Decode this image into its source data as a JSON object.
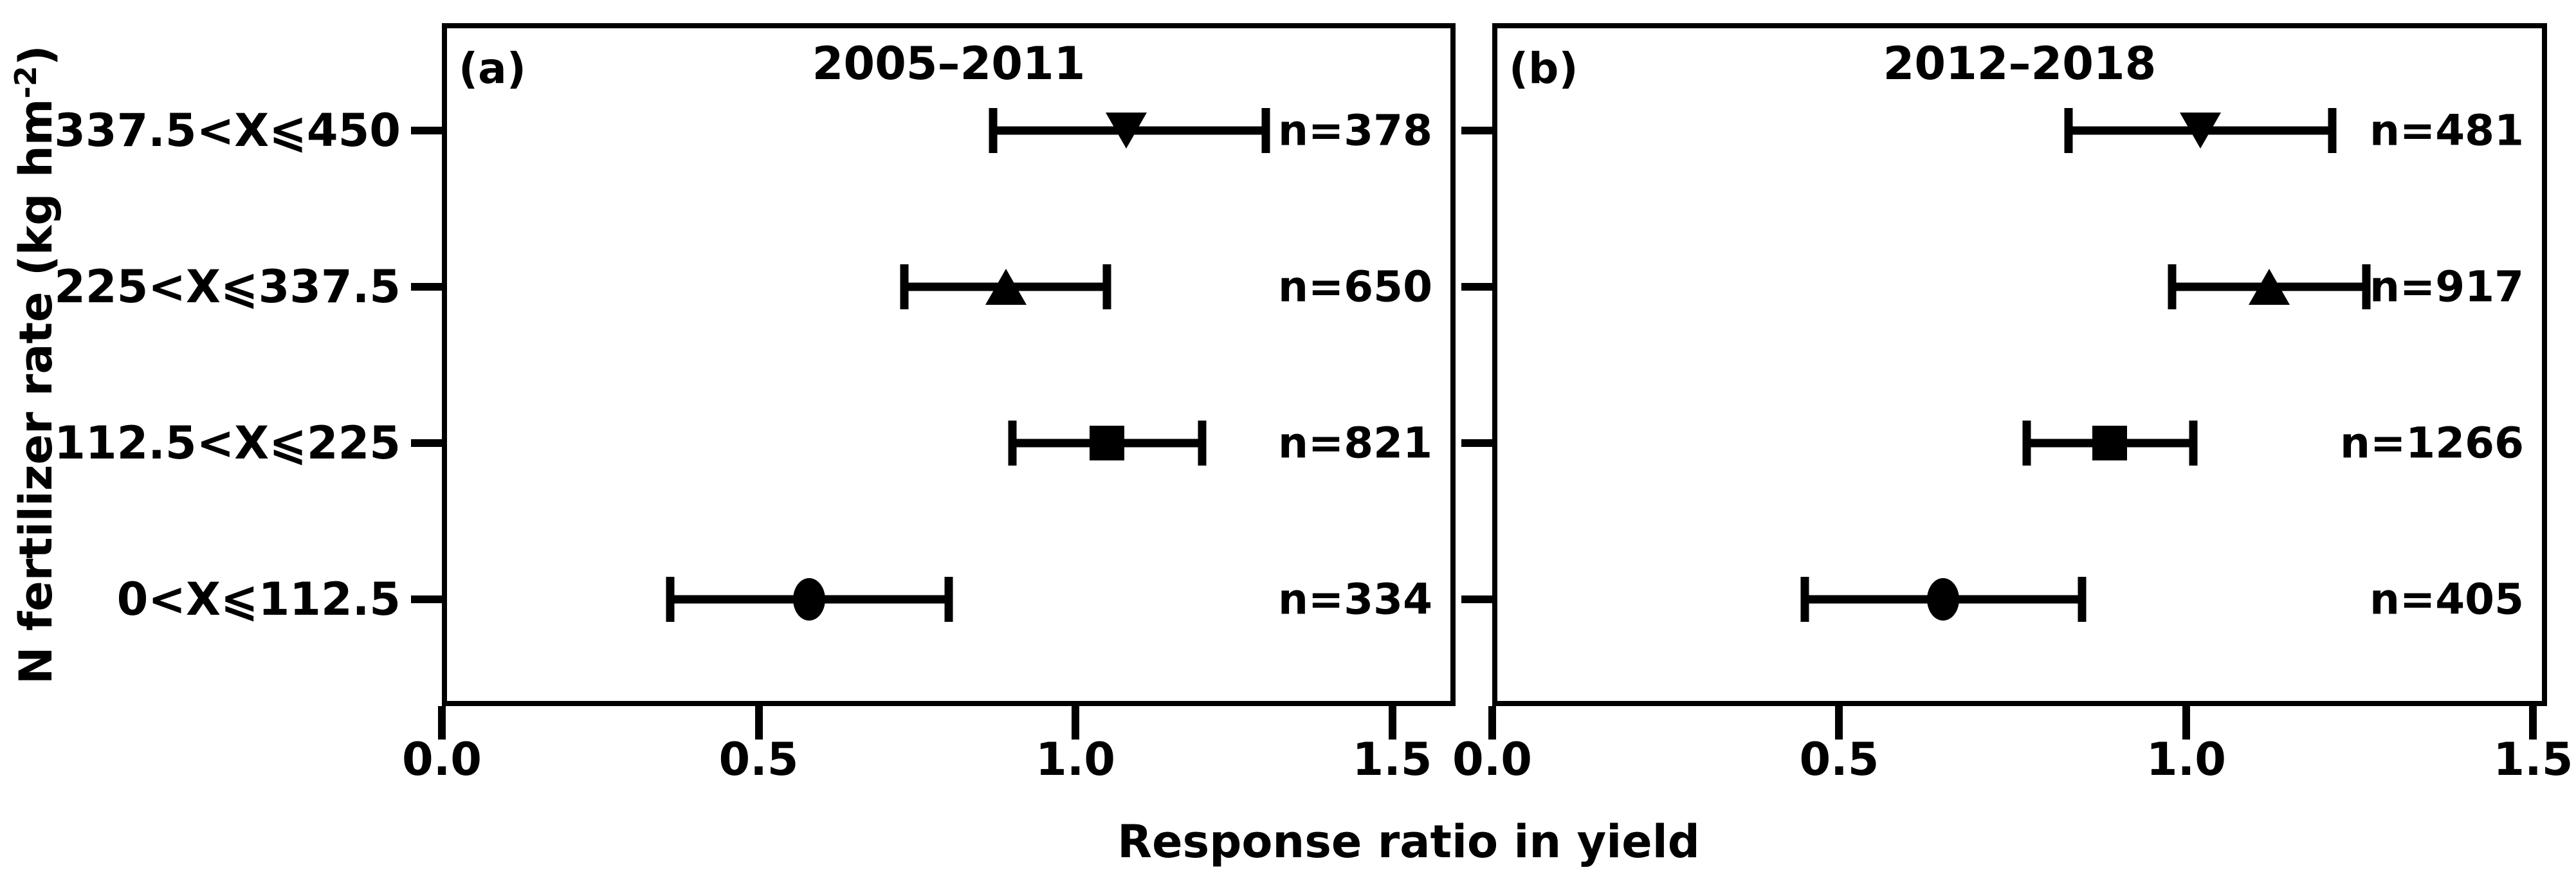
{
  "figure": {
    "xlabel": "Response ratio in yield",
    "ylabel_main": "N fertilizer rate (kg hm",
    "ylabel_sup": "-2",
    "ylabel_end": ")",
    "colors": {
      "ink": "#000000",
      "background": "#ffffff"
    }
  },
  "chart_data": [
    {
      "type": "scatter",
      "panel_label": "(a)",
      "title": "2005–2011",
      "xlabel": "Response ratio in yield",
      "ylabel": "N fertilizer rate (kg hm-2)",
      "xlim": [
        0.0,
        1.6
      ],
      "xtick_values": [
        0.0,
        0.5,
        1.0,
        1.5
      ],
      "xtick_labels": [
        "0.0",
        "0.5",
        "1.0",
        "1.5"
      ],
      "grid": false,
      "legend": "none",
      "categories": [
        "337.5<X⩽450",
        "225<X⩽337.5",
        "112.5<X⩽225",
        "0<X⩽112.5"
      ],
      "points": [
        {
          "category": "337.5<X⩽450",
          "marker": "triangle-down",
          "mean": 1.08,
          "ci_low": 0.87,
          "ci_high": 1.3,
          "n_label": "n=378"
        },
        {
          "category": "225<X⩽337.5",
          "marker": "triangle-up",
          "mean": 0.89,
          "ci_low": 0.73,
          "ci_high": 1.05,
          "n_label": "n=650"
        },
        {
          "category": "112.5<X⩽225",
          "marker": "square",
          "mean": 1.05,
          "ci_low": 0.9,
          "ci_high": 1.2,
          "n_label": "n=821"
        },
        {
          "category": "0<X⩽112.5",
          "marker": "circle",
          "mean": 0.58,
          "ci_low": 0.36,
          "ci_high": 0.8,
          "n_label": "n=334"
        }
      ]
    },
    {
      "type": "scatter",
      "panel_label": "(b)",
      "title": "2012–2018",
      "xlabel": "Response ratio in yield",
      "ylabel": "N fertilizer rate (kg hm-2)",
      "xlim": [
        0.0,
        1.52
      ],
      "xtick_values": [
        0.0,
        0.5,
        1.0,
        1.5
      ],
      "xtick_labels": [
        "0.0",
        "0.5",
        "1.0",
        "1.5"
      ],
      "grid": false,
      "legend": "none",
      "categories": [
        "337.5<X⩽450",
        "225<X⩽337.5",
        "112.5<X⩽225",
        "0<X⩽112.5"
      ],
      "points": [
        {
          "category": "337.5<X⩽450",
          "marker": "triangle-down",
          "mean": 1.02,
          "ci_low": 0.83,
          "ci_high": 1.21,
          "n_label": "n=481"
        },
        {
          "category": "225<X⩽337.5",
          "marker": "triangle-up",
          "mean": 1.12,
          "ci_low": 0.98,
          "ci_high": 1.26,
          "n_label": "n=917"
        },
        {
          "category": "112.5<X⩽225",
          "marker": "square",
          "mean": 0.89,
          "ci_low": 0.77,
          "ci_high": 1.01,
          "n_label": "n=1266"
        },
        {
          "category": "0<X⩽112.5",
          "marker": "circle",
          "mean": 0.65,
          "ci_low": 0.45,
          "ci_high": 0.85,
          "n_label": "n=405"
        }
      ]
    }
  ]
}
